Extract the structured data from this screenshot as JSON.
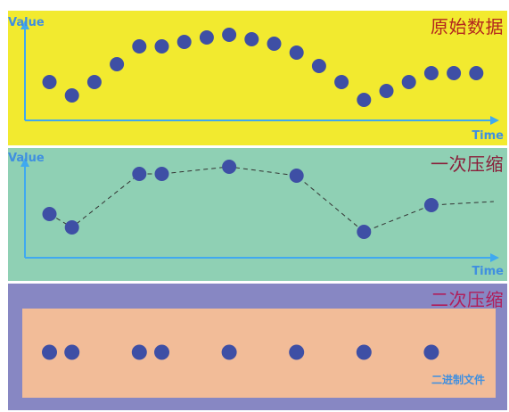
{
  "panels": {
    "raw": {
      "title": "原始数据",
      "y_label": "Value",
      "x_label": "Time"
    },
    "first": {
      "title": "一次压缩",
      "y_label": "Value",
      "x_label": "Time"
    },
    "second": {
      "title": "二次压缩",
      "binary_label": "二进制文件"
    }
  },
  "colors": {
    "raw_bg": "#f2ea2f",
    "first_bg": "#8fd0b4",
    "second_bg": "#8787c3",
    "binary_bg": "#f2bc98",
    "axis": "#3fa9f0",
    "dot": "#3e4fa5"
  },
  "chart_data": [
    {
      "type": "scatter",
      "series": [
        {
          "values": [
            0.4,
            0.25,
            0.4,
            0.6,
            0.8,
            0.8,
            0.85,
            0.9,
            0.93,
            0.88,
            0.83,
            0.73,
            0.58,
            0.4,
            0.2,
            0.3,
            0.4,
            0.5,
            0.5,
            0.5
          ]
        }
      ],
      "x": [
        1,
        2,
        3,
        4,
        5,
        6,
        7,
        8,
        9,
        10,
        11,
        12,
        13,
        14,
        15,
        16,
        17,
        18,
        19,
        20
      ],
      "xlabel": "Time",
      "ylabel": "Value"
    },
    {
      "type": "line",
      "series": [
        {
          "values": [
            0.4,
            0.25,
            0.85,
            0.85,
            0.93,
            0.83,
            0.2,
            0.5
          ]
        }
      ],
      "x": [
        1,
        2,
        5,
        6,
        9,
        12,
        15,
        18
      ],
      "xlabel": "Time",
      "ylabel": "Value"
    }
  ],
  "binary": {
    "dot_count": 8
  }
}
